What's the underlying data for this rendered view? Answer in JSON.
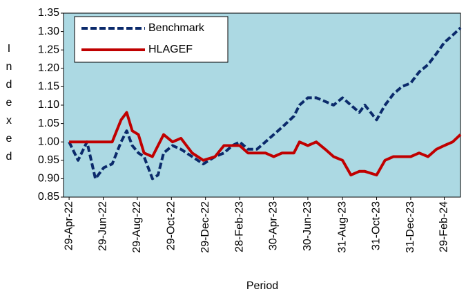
{
  "chart_data": {
    "type": "line",
    "x_label": "Period",
    "y_label": "Indexed",
    "x": [
      "2022-04-29",
      "2022-05-15",
      "2022-05-31",
      "2022-06-15",
      "2022-06-30",
      "2022-07-15",
      "2022-07-31",
      "2022-08-10",
      "2022-08-20",
      "2022-08-31",
      "2022-09-10",
      "2022-09-25",
      "2022-10-05",
      "2022-10-15",
      "2022-10-31",
      "2022-11-15",
      "2022-12-05",
      "2022-12-25",
      "2023-01-15",
      "2023-01-31",
      "2023-02-15",
      "2023-02-28",
      "2023-03-15",
      "2023-03-31",
      "2023-04-15",
      "2023-04-30",
      "2023-05-15",
      "2023-06-05",
      "2023-06-15",
      "2023-06-30",
      "2023-07-15",
      "2023-07-31",
      "2023-08-15",
      "2023-08-31",
      "2023-09-15",
      "2023-09-30",
      "2023-10-10",
      "2023-10-31",
      "2023-11-15",
      "2023-11-30",
      "2023-12-15",
      "2023-12-31",
      "2024-01-15",
      "2024-01-31",
      "2024-02-15",
      "2024-02-29",
      "2024-03-15",
      "2024-03-29"
    ],
    "series": [
      {
        "name": "Benchmark",
        "color": "#0b2a6b",
        "dashed": true,
        "values": [
          1.0,
          0.95,
          1.0,
          0.9,
          0.93,
          0.94,
          1.0,
          1.03,
          0.99,
          0.97,
          0.96,
          0.9,
          0.91,
          0.97,
          0.99,
          0.98,
          0.96,
          0.94,
          0.96,
          0.97,
          0.99,
          1.0,
          0.98,
          0.98,
          1.0,
          1.02,
          1.04,
          1.07,
          1.1,
          1.12,
          1.12,
          1.11,
          1.1,
          1.12,
          1.1,
          1.08,
          1.1,
          1.06,
          1.1,
          1.13,
          1.15,
          1.16,
          1.19,
          1.21,
          1.24,
          1.27,
          1.29,
          1.31
        ]
      },
      {
        "name": "HLAGEF",
        "color": "#c00000",
        "dashed": false,
        "values": [
          1.0,
          1.0,
          1.0,
          1.0,
          1.0,
          1.0,
          1.06,
          1.08,
          1.03,
          1.02,
          0.97,
          0.96,
          0.99,
          1.02,
          1.0,
          1.01,
          0.97,
          0.95,
          0.96,
          0.99,
          0.99,
          0.99,
          0.97,
          0.97,
          0.97,
          0.96,
          0.97,
          0.97,
          1.0,
          0.99,
          1.0,
          0.98,
          0.96,
          0.95,
          0.91,
          0.92,
          0.92,
          0.91,
          0.95,
          0.96,
          0.96,
          0.96,
          0.97,
          0.96,
          0.98,
          0.99,
          1.0,
          1.02
        ]
      }
    ],
    "xlim": [
      "2022-04-19",
      "2024-03-29"
    ],
    "xticks": [
      {
        "value": "2022-04-29",
        "label": "29-Apr-22"
      },
      {
        "value": "2022-06-29",
        "label": "29-Jun-22"
      },
      {
        "value": "2022-08-29",
        "label": "29-Aug-22"
      },
      {
        "value": "2022-10-29",
        "label": "29-Oct-22"
      },
      {
        "value": "2022-12-29",
        "label": "29-Dec-22"
      },
      {
        "value": "2023-02-28",
        "label": "28-Feb-23"
      },
      {
        "value": "2023-04-30",
        "label": "30-Apr-23"
      },
      {
        "value": "2023-06-30",
        "label": "30-Jun-23"
      },
      {
        "value": "2023-08-31",
        "label": "31-Aug-23"
      },
      {
        "value": "2023-10-31",
        "label": "31-Oct-23"
      },
      {
        "value": "2023-12-31",
        "label": "31-Dec-23"
      },
      {
        "value": "2024-02-29",
        "label": "29-Feb-24"
      }
    ],
    "ylim": [
      0.85,
      1.35
    ],
    "yticks": [
      0.85,
      {
        "value": 0.9,
        "label": "0.90"
      },
      0.95,
      {
        "value": 1.0,
        "label": "1.00"
      },
      1.05,
      {
        "value": 1.1,
        "label": "1.10"
      },
      1.15,
      {
        "value": 1.2,
        "label": "1.20"
      },
      1.25,
      {
        "value": 1.3,
        "label": "1.30"
      },
      1.35
    ],
    "grid": false,
    "legend": "upper-left",
    "plot_background": "#acd9e3"
  }
}
